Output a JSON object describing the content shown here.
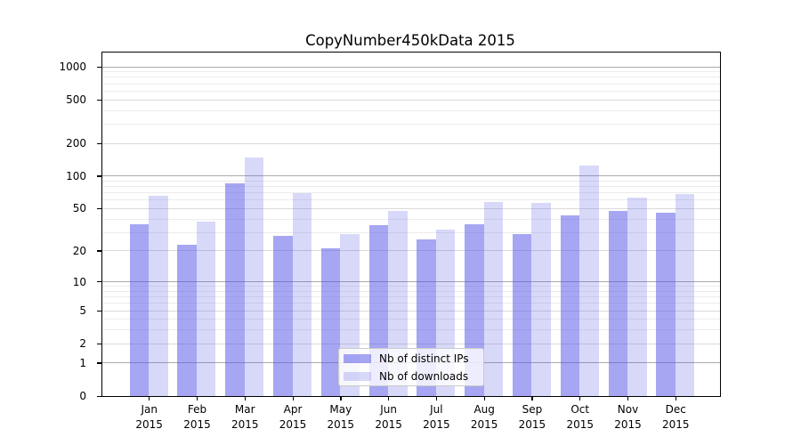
{
  "chart_data": {
    "type": "bar",
    "title": "CopyNumber450kData 2015",
    "yscale": "log1p",
    "grid": true,
    "legend_position": "bottom-center",
    "categories": [
      "Jan",
      "Feb",
      "Mar",
      "Apr",
      "May",
      "Jun",
      "Jul",
      "Aug",
      "Sep",
      "Oct",
      "Nov",
      "Dec"
    ],
    "category_year": "2015",
    "ytick_values": [
      0,
      1,
      2,
      5,
      10,
      20,
      50,
      100,
      200,
      500,
      1000
    ],
    "ytick_labels": [
      "0",
      "1",
      "2",
      "5",
      "10",
      "20",
      "50",
      "100",
      "200",
      "500",
      "1000"
    ],
    "ylim": [
      0,
      1350
    ],
    "series": [
      {
        "key": "distinct-ips",
        "name": "Nb of distinct IPs",
        "color": "rgba(85,85,230,0.52)",
        "color_flat": "#a8a8f2",
        "values": [
          36,
          23,
          85,
          28,
          21,
          35,
          26,
          36,
          29,
          43,
          48,
          46
        ]
      },
      {
        "key": "downloads",
        "name": "Nb of downloads",
        "color": "rgba(85,85,230,0.23)",
        "color_flat": "#d8d8fa",
        "values": [
          66,
          38,
          148,
          69,
          29,
          48,
          32,
          58,
          57,
          125,
          63,
          68
        ]
      }
    ],
    "grid_colors": {
      "major": "#aaaaaa",
      "mid": "#dadada",
      "minor": "#ececec"
    },
    "frame_color": "#000000"
  }
}
